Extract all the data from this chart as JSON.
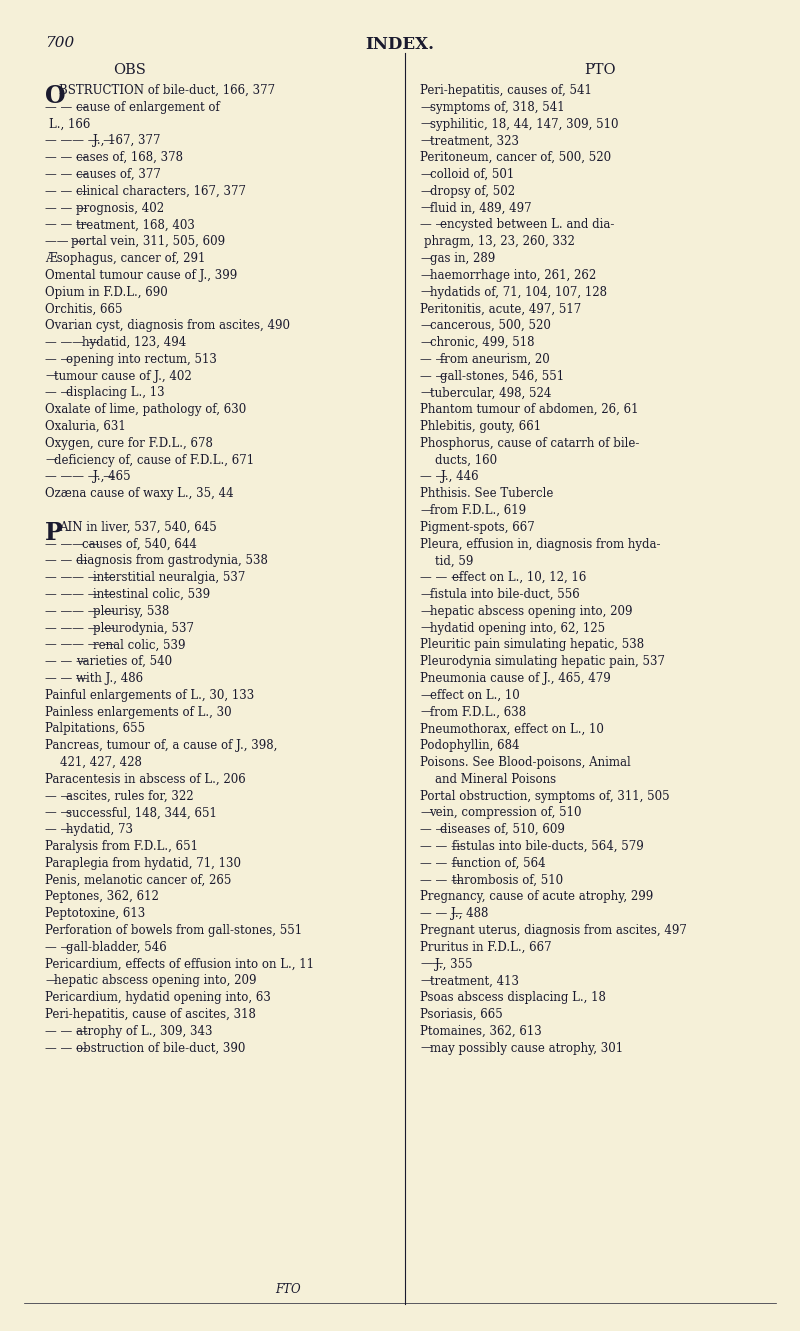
{
  "bg_color": "#f5f0d8",
  "text_color": "#1a1a2e",
  "page_number": "700",
  "header": "INDEX.",
  "col1_header": "OBS",
  "col2_header": "PTO",
  "left_lines": [
    [
      "O",
      "BSTRUCTION of bile-duct, 166, 377"
    ],
    [
      "— — —",
      "cause of enlargement of"
    ],
    [
      "",
      "L., 166"
    ],
    [
      "— —— — —",
      "J., 167, 377"
    ],
    [
      "— — —",
      "cases of, 168, 378"
    ],
    [
      "— — —",
      "causes of, 377"
    ],
    [
      "— — —",
      "clinical characters, 167, 377"
    ],
    [
      "— — —",
      "prognosis, 402"
    ],
    [
      "— — —",
      "treatment, 168, 403"
    ],
    [
      "—— —",
      "portal vein, 311, 505, 609"
    ],
    [
      "Æsophagus, cancer of, 291",
      ""
    ],
    [
      "Omental tumour cause of J., 399",
      ""
    ],
    [
      "Opium in F.D.L., 690",
      ""
    ],
    [
      "Orchitis, 665",
      ""
    ],
    [
      "Ovarian cyst, diagnosis from ascites, 490",
      ""
    ],
    [
      "— —— —",
      "hydatid, 123, 494"
    ],
    [
      "— —",
      "opening into rectum, 513"
    ],
    [
      "—",
      "tumour cause of J., 402"
    ],
    [
      "— —",
      "displacing L., 13"
    ],
    [
      "Oxalate of lime, pathology of, 630",
      ""
    ],
    [
      "Oxaluria, 631",
      ""
    ],
    [
      "Oxygen, cure for F.D.L., 678",
      ""
    ],
    [
      "—",
      "deficiency of, cause of F.D.L., 671"
    ],
    [
      "— —— — —",
      "J., 465"
    ],
    [
      "Ozæna cause of waxy L., 35, 44",
      ""
    ],
    [
      "",
      ""
    ],
    [
      "",
      ""
    ],
    [
      "P",
      "AIN in liver, 537, 540, 645"
    ],
    [
      "— —— —",
      "causes of, 540, 644"
    ],
    [
      "— — —",
      "diagnosis from gastrodynia, 538"
    ],
    [
      "— —— — —",
      "interstitial neuralgia, 537"
    ],
    [
      "— —— — —",
      "intestinal colic, 539"
    ],
    [
      "— —— — —",
      "pleurisy, 538"
    ],
    [
      "— —— — —",
      "pleurodynia, 537"
    ],
    [
      "— —— — —",
      "renal colic, 539"
    ],
    [
      "— — —",
      "varieties of, 540"
    ],
    [
      "— — —",
      "with J., 486"
    ],
    [
      "Painful enlargements of L., 30, 133",
      ""
    ],
    [
      "Painless enlargements of L., 30",
      ""
    ],
    [
      "Palpitations, 655",
      ""
    ],
    [
      "Pancreas, tumour of, a cause of J., 398,",
      ""
    ],
    [
      "    421, 427, 428",
      ""
    ],
    [
      "Paracentesis in abscess of L., 206",
      ""
    ],
    [
      "— —",
      "ascites, rules for, 322"
    ],
    [
      "— —",
      "successful, 148, 344, 651"
    ],
    [
      "— —",
      "hydatid, 73"
    ],
    [
      "Paralysis from F.D.L., 651",
      ""
    ],
    [
      "Paraplegia from hydatid, 71, 130",
      ""
    ],
    [
      "Penis, melanotic cancer of, 265",
      ""
    ],
    [
      "Peptones, 362, 612",
      ""
    ],
    [
      "Peptotoxine, 613",
      ""
    ],
    [
      "Perforation of bowels from gall-stones, 551",
      ""
    ],
    [
      "— —",
      "gall-bladder, 546"
    ],
    [
      "Pericardium, effects of effusion into on L., 11",
      ""
    ],
    [
      "—",
      "hepatic abscess opening into, 209"
    ],
    [
      "Pericardium, hydatid opening into, 63",
      ""
    ],
    [
      "Peri-hepatitis, cause of ascites, 318",
      ""
    ],
    [
      "— — —",
      "atrophy of L., 309, 343"
    ],
    [
      "— — —",
      "obstruction of bile-duct, 390"
    ]
  ],
  "right_lines": [
    [
      "Peri-hepatitis, causes of, 541",
      ""
    ],
    [
      "—",
      "symptoms of, 318, 541"
    ],
    [
      "—",
      "syphilitic, 18, 44, 147, 309, 510"
    ],
    [
      "—",
      "treatment, 323"
    ],
    [
      "Peritoneum, cancer of, 500, 520",
      ""
    ],
    [
      "—",
      "colloid of, 501"
    ],
    [
      "—",
      "dropsy of, 502"
    ],
    [
      "—",
      "fluid in, 489, 497"
    ],
    [
      "— —",
      "encysted between L. and dia-"
    ],
    [
      "",
      "phragm, 13, 23, 260, 332"
    ],
    [
      "—",
      "gas in, 289"
    ],
    [
      "—",
      "haemorrhage into, 261, 262"
    ],
    [
      "—",
      "hydatids of, 71, 104, 107, 128"
    ],
    [
      "Peritonitis, acute, 497, 517",
      ""
    ],
    [
      "—",
      "cancerous, 500, 520"
    ],
    [
      "—",
      "chronic, 499, 518"
    ],
    [
      "— —",
      "from aneurism, 20"
    ],
    [
      "— —",
      "gall-stones, 546, 551"
    ],
    [
      "—",
      "tubercular, 498, 524"
    ],
    [
      "Phantom tumour of abdomen, 26, 61",
      ""
    ],
    [
      "Phlebitis, gouty, 661",
      ""
    ],
    [
      "Phosphorus, cause of catarrh of bile-",
      ""
    ],
    [
      "    ducts, 160",
      ""
    ],
    [
      "— —",
      "J., 446"
    ],
    [
      "Phthisis. See Tubercle",
      ""
    ],
    [
      "—",
      "from F.D.L., 619"
    ],
    [
      "Pigment-spots, 667",
      ""
    ],
    [
      "Pleura, effusion in, diagnosis from hyda-",
      ""
    ],
    [
      "    tid, 59",
      ""
    ],
    [
      "— — —",
      "effect on L., 10, 12, 16"
    ],
    [
      "—",
      "fistula into bile-duct, 556"
    ],
    [
      "—",
      "hepatic abscess opening into, 209"
    ],
    [
      "—",
      "hydatid opening into, 62, 125"
    ],
    [
      "Pleuritic pain simulating hepatic, 538",
      ""
    ],
    [
      "Pleurodynia simulating hepatic pain, 537",
      ""
    ],
    [
      "Pneumonia cause of J., 465, 479",
      ""
    ],
    [
      "—",
      "effect on L., 10"
    ],
    [
      "—",
      "from F.D.L., 638"
    ],
    [
      "Pneumothorax, effect on L., 10",
      ""
    ],
    [
      "Podophyllin, 684",
      ""
    ],
    [
      "Poisons. See Blood-poisons, Animal",
      ""
    ],
    [
      "    and Mineral Poisons",
      ""
    ],
    [
      "Portal obstruction, symptoms of, 311, 505",
      ""
    ],
    [
      "—",
      "vein, compression of, 510"
    ],
    [
      "— —",
      "diseases of, 510, 609"
    ],
    [
      "— — —",
      "fistulas into bile-ducts, 564, 579"
    ],
    [
      "— — —",
      "function of, 564"
    ],
    [
      "— — —",
      "thrombosis of, 510"
    ],
    [
      "Pregnancy, cause of acute atrophy, 299",
      ""
    ],
    [
      "— — —",
      "J., 488"
    ],
    [
      "Pregnant uterus, diagnosis from ascites, 497",
      ""
    ],
    [
      "Pruritus in F.D.L., 667",
      ""
    ],
    [
      "——",
      "J., 355"
    ],
    [
      "—",
      "treatment, 413"
    ],
    [
      "Psoas abscess displacing L., 18",
      ""
    ],
    [
      "Psoriasis, 665",
      ""
    ],
    [
      "Ptomaines, 362, 613",
      ""
    ],
    [
      "—",
      "may possibly cause atrophy, 301"
    ]
  ],
  "font_size": 8.5,
  "header_font_size": 10.5,
  "page_num_font_size": 11,
  "title_font_size": 12
}
